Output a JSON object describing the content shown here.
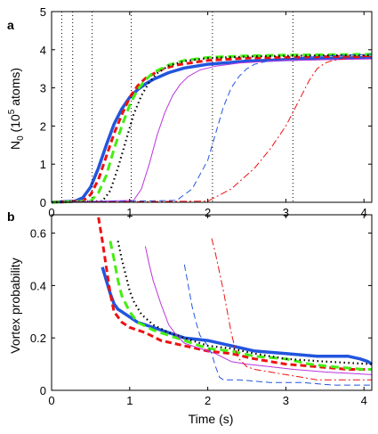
{
  "chart_data": [
    {
      "type": "line",
      "panel_label": "a",
      "xlabel": "",
      "ylabel": "N",
      "ylabel_sub": "0",
      "ylabel_rest1": " (10",
      "ylabel_sup": "5",
      "ylabel_rest2": " atoms)",
      "xlim": [
        0,
        4.1
      ],
      "ylim": [
        0,
        5
      ],
      "x_ticks": [
        0,
        1,
        2,
        3,
        4
      ],
      "y_ticks": [
        0,
        1,
        2,
        3,
        4,
        5
      ],
      "x_tick_labels": [
        "0",
        "1",
        "2",
        "3",
        "4"
      ],
      "y_tick_labels": [
        "0",
        "1",
        "2",
        "3",
        "4",
        "5"
      ],
      "grid": false,
      "vertical_markers": [
        0.13,
        0.27,
        0.52,
        1.02,
        2.06,
        3.09
      ],
      "series": [
        {
          "color": "#2255dd",
          "dash": "solid",
          "width": 3.5,
          "x": [
            0,
            0.3,
            0.4,
            0.5,
            0.6,
            0.7,
            0.8,
            0.9,
            1.0,
            1.1,
            1.2,
            1.3,
            1.5,
            1.7,
            2.0,
            2.5,
            3.0,
            3.5,
            4.1
          ],
          "y": [
            0.0,
            0.03,
            0.12,
            0.4,
            0.9,
            1.5,
            2.05,
            2.45,
            2.75,
            2.95,
            3.1,
            3.22,
            3.4,
            3.52,
            3.62,
            3.7,
            3.74,
            3.77,
            3.8
          ]
        },
        {
          "color": "#ee1111",
          "dash": "7,4",
          "width": 3,
          "x": [
            0,
            0.4,
            0.5,
            0.6,
            0.7,
            0.8,
            0.9,
            1.0,
            1.1,
            1.2,
            1.4,
            1.6,
            2.0,
            2.5,
            3.0,
            4.1
          ],
          "y": [
            0.0,
            0.03,
            0.2,
            0.6,
            1.2,
            1.8,
            2.3,
            2.75,
            3.05,
            3.25,
            3.48,
            3.6,
            3.72,
            3.78,
            3.8,
            3.84
          ]
        },
        {
          "color": "#44ee11",
          "dash": "9,5",
          "width": 3,
          "x": [
            0,
            0.5,
            0.6,
            0.7,
            0.8,
            0.9,
            1.0,
            1.1,
            1.2,
            1.3,
            1.5,
            1.7,
            2.0,
            2.5,
            3.0,
            4.1
          ],
          "y": [
            0.0,
            0.03,
            0.25,
            0.7,
            1.4,
            2.0,
            2.55,
            2.95,
            3.2,
            3.4,
            3.6,
            3.72,
            3.8,
            3.84,
            3.86,
            3.88
          ]
        },
        {
          "color": "#000000",
          "dash": "1.5,3.5",
          "width": 2.2,
          "x": [
            0,
            0.65,
            0.75,
            0.85,
            0.95,
            1.05,
            1.15,
            1.25,
            1.35,
            1.5,
            1.7,
            2.0,
            2.5,
            3.0,
            4.1
          ],
          "y": [
            0.0,
            0.03,
            0.3,
            0.9,
            1.6,
            2.3,
            2.8,
            3.15,
            3.38,
            3.58,
            3.7,
            3.78,
            3.82,
            3.84,
            3.86
          ]
        },
        {
          "color": "#bb33dd",
          "dash": "solid",
          "width": 1,
          "x": [
            0,
            1.05,
            1.15,
            1.25,
            1.35,
            1.45,
            1.55,
            1.65,
            1.75,
            1.9,
            2.1,
            2.4,
            3.0,
            4.1
          ],
          "y": [
            0.0,
            0.05,
            0.35,
            1.0,
            1.75,
            2.35,
            2.8,
            3.1,
            3.3,
            3.47,
            3.57,
            3.65,
            3.72,
            3.76
          ]
        },
        {
          "color": "#2255dd",
          "dash": "7,4",
          "width": 1,
          "x": [
            0,
            1.6,
            1.8,
            2.0,
            2.1,
            2.2,
            2.3,
            2.4,
            2.5,
            2.6,
            2.8,
            3.2,
            3.6,
            4.1
          ],
          "y": [
            0.0,
            0.05,
            0.35,
            1.1,
            1.8,
            2.5,
            3.0,
            3.3,
            3.5,
            3.62,
            3.72,
            3.8,
            3.84,
            3.88
          ]
        },
        {
          "color": "#ee1111",
          "dash": "8,3,2,3",
          "width": 1,
          "x": [
            0,
            2.0,
            2.3,
            2.6,
            2.8,
            3.0,
            3.2,
            3.3,
            3.4,
            3.5,
            3.6,
            3.8,
            4.1
          ],
          "y": [
            0.0,
            0.03,
            0.35,
            0.9,
            1.4,
            2.0,
            2.8,
            3.2,
            3.5,
            3.65,
            3.72,
            3.78,
            3.82
          ]
        }
      ]
    },
    {
      "type": "line",
      "panel_label": "b",
      "xlabel": "Time (s)",
      "ylabel": "Vortex probability",
      "xlim": [
        0,
        4.1
      ],
      "ylim": [
        0,
        0.67
      ],
      "x_ticks": [
        0,
        1,
        2,
        3,
        4
      ],
      "y_ticks": [
        0,
        0.2,
        0.4,
        0.6
      ],
      "x_tick_labels": [
        "0",
        "1",
        "2",
        "3",
        "4"
      ],
      "y_tick_labels": [
        "0",
        "0.2",
        "0.4",
        "0.6"
      ],
      "grid": false,
      "series": [
        {
          "color": "#2255dd",
          "dash": "solid",
          "width": 3.5,
          "x": [
            0.65,
            0.7,
            0.75,
            0.8,
            0.85,
            0.9,
            1.0,
            1.1,
            1.3,
            1.5,
            1.7,
            2.0,
            2.3,
            2.6,
            3.0,
            3.4,
            3.8,
            3.95,
            4.05,
            4.1
          ],
          "y": [
            0.47,
            0.42,
            0.37,
            0.33,
            0.31,
            0.3,
            0.28,
            0.26,
            0.24,
            0.22,
            0.2,
            0.19,
            0.17,
            0.15,
            0.14,
            0.13,
            0.13,
            0.12,
            0.11,
            0.1
          ]
        },
        {
          "color": "#ee1111",
          "dash": "7,4",
          "width": 3,
          "x": [
            0.6,
            0.65,
            0.7,
            0.75,
            0.8,
            0.9,
            1.0,
            1.2,
            1.4,
            1.7,
            2.0,
            2.3,
            2.6,
            3.0,
            3.4,
            3.8,
            4.1
          ],
          "y": [
            0.66,
            0.57,
            0.47,
            0.37,
            0.3,
            0.26,
            0.24,
            0.22,
            0.19,
            0.17,
            0.15,
            0.14,
            0.12,
            0.1,
            0.09,
            0.08,
            0.08
          ]
        },
        {
          "color": "#44ee11",
          "dash": "9,5",
          "width": 3,
          "x": [
            0.75,
            0.8,
            0.85,
            0.9,
            1.0,
            1.1,
            1.3,
            1.5,
            1.8,
            2.0,
            2.3,
            2.6,
            3.0,
            3.3,
            3.6,
            4.0,
            4.1
          ],
          "y": [
            0.57,
            0.5,
            0.42,
            0.36,
            0.3,
            0.26,
            0.23,
            0.21,
            0.18,
            0.16,
            0.15,
            0.13,
            0.12,
            0.1,
            0.09,
            0.08,
            0.08
          ]
        },
        {
          "color": "#000000",
          "dash": "1.5,3.5",
          "width": 2.2,
          "x": [
            0.85,
            0.9,
            0.95,
            1.0,
            1.05,
            1.15,
            1.3,
            1.5,
            1.8,
            2.0,
            2.3,
            2.6,
            3.0,
            3.5,
            4.1
          ],
          "y": [
            0.57,
            0.5,
            0.44,
            0.38,
            0.34,
            0.29,
            0.25,
            0.22,
            0.19,
            0.17,
            0.16,
            0.14,
            0.12,
            0.11,
            0.1
          ]
        },
        {
          "color": "#bb33dd",
          "dash": "solid",
          "width": 1,
          "x": [
            1.2,
            1.25,
            1.3,
            1.4,
            1.5,
            1.6,
            1.7,
            1.9,
            2.1,
            2.3,
            2.5,
            2.8,
            3.1,
            3.5,
            4.1
          ],
          "y": [
            0.55,
            0.48,
            0.42,
            0.33,
            0.25,
            0.21,
            0.18,
            0.16,
            0.14,
            0.11,
            0.1,
            0.09,
            0.08,
            0.07,
            0.06
          ]
        },
        {
          "color": "#2255dd",
          "dash": "7,4",
          "width": 1,
          "x": [
            1.7,
            1.75,
            1.8,
            1.85,
            1.9,
            2.0,
            2.05,
            2.1,
            2.15,
            2.2,
            2.4,
            2.8,
            3.2,
            3.6,
            4.1
          ],
          "y": [
            0.48,
            0.4,
            0.32,
            0.26,
            0.21,
            0.17,
            0.14,
            0.09,
            0.05,
            0.04,
            0.04,
            0.03,
            0.03,
            0.02,
            0.02
          ]
        },
        {
          "color": "#ee1111",
          "dash": "8,3,2,3",
          "width": 1,
          "x": [
            2.05,
            2.1,
            2.15,
            2.2,
            2.25,
            2.3,
            2.35,
            2.4,
            2.5,
            2.6,
            2.8,
            3.0,
            3.2,
            3.4,
            3.8,
            4.1
          ],
          "y": [
            0.58,
            0.52,
            0.45,
            0.38,
            0.3,
            0.22,
            0.16,
            0.12,
            0.09,
            0.08,
            0.07,
            0.06,
            0.05,
            0.04,
            0.04,
            0.04
          ]
        }
      ]
    }
  ]
}
